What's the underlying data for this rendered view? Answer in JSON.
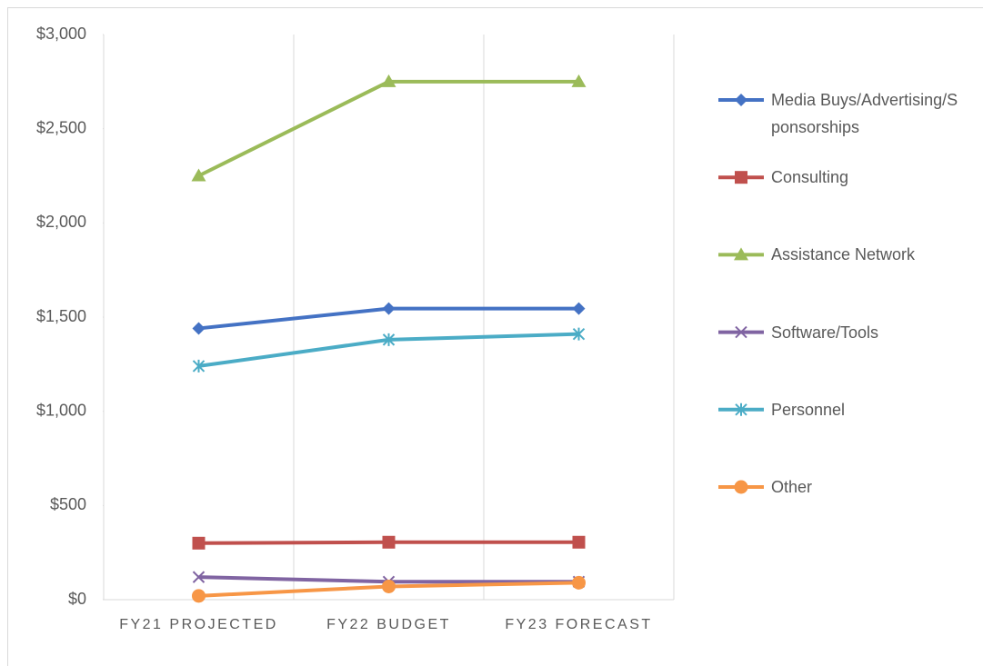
{
  "chart_data": {
    "type": "line",
    "categories": [
      "FY21 PROJECTED",
      "FY22 BUDGET",
      "FY23 FORECAST"
    ],
    "series": [
      {
        "name": "Media Buys/Advertising/Sponsorships",
        "color": "#4472c4",
        "marker": "diamond",
        "values": [
          1440,
          1545,
          1545
        ]
      },
      {
        "name": "Consulting",
        "color": "#c0504d",
        "marker": "square",
        "values": [
          300,
          305,
          305
        ]
      },
      {
        "name": "Assistance Network",
        "color": "#9bbb59",
        "marker": "triangle",
        "values": [
          2250,
          2750,
          2750
        ]
      },
      {
        "name": "Software/Tools",
        "color": "#8064a2",
        "marker": "x",
        "values": [
          120,
          95,
          95
        ]
      },
      {
        "name": "Personnel",
        "color": "#4bacc6",
        "marker": "star",
        "values": [
          1240,
          1380,
          1410
        ]
      },
      {
        "name": "Other",
        "color": "#f79646",
        "marker": "circle",
        "values": [
          20,
          70,
          90
        ]
      }
    ],
    "ylim": [
      0,
      3000
    ],
    "yticks": [
      {
        "value": 0,
        "label": "$0"
      },
      {
        "value": 500,
        "label": "$500"
      },
      {
        "value": 1000,
        "label": "$1,000"
      },
      {
        "value": 1500,
        "label": "$1,500"
      },
      {
        "value": 2000,
        "label": "$2,000"
      },
      {
        "value": 2500,
        "label": "$2,500"
      },
      {
        "value": 3000,
        "label": "$3,000"
      }
    ],
    "legend": "right"
  }
}
